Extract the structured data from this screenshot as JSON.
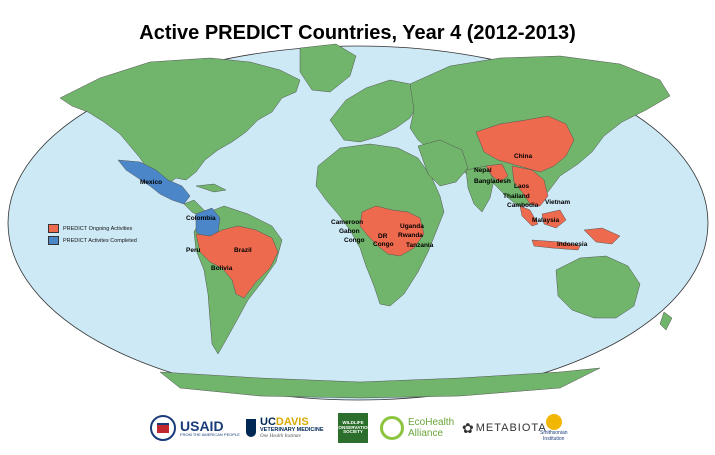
{
  "title": "Active PREDICT Countries, Year 4 (2012-2013)",
  "legend": {
    "items": [
      {
        "label": "PREDICT Ongoing Activities",
        "color": "#ee6a4e"
      },
      {
        "label": "PREDICT Activites Completed",
        "color": "#4a86c8"
      }
    ]
  },
  "colors": {
    "ocean": "#cde9f6",
    "land": "#70b56b",
    "ongoing": "#ee6a4e",
    "completed": "#4a86c8",
    "border": "#555555"
  },
  "countries": {
    "mexico": "Mexico",
    "colombia": "Colombia",
    "peru": "Peru",
    "brazil": "Brazil",
    "bolivia": "Bolivia",
    "cameroon": "Cameroon",
    "gabon": "Gabon",
    "congo": "Congo",
    "dr_congo_1": "DR",
    "dr_congo_2": "Congo",
    "uganda": "Uganda",
    "rwanda": "Rwanda",
    "tanzania": "Tanzania",
    "china": "China",
    "nepal": "Nepal",
    "bangladesh": "Bangladesh",
    "laos": "Laos",
    "thailand": "Thailand",
    "cambodia": "Cambodia",
    "vietnam": "Vietnam",
    "malaysia": "Malaysia",
    "indonesia": "Indonesia"
  },
  "logos": {
    "usaid": "USAID",
    "usaid_sub": "FROM THE AMERICAN PEOPLE",
    "ucdavis_uc": "UC",
    "ucdavis_davis": "DAVIS",
    "ucdavis_sub": "VETERINARY MEDICINE",
    "ucdavis_sub2": "One Health Institute",
    "wcs": "WILDLIFE CONSERVATION SOCIETY",
    "ecohealth_1": "EcoHealth",
    "ecohealth_2": "Alliance",
    "metabiota": "METABIOTA",
    "smithsonian_1": "Smithsonian",
    "smithsonian_2": "Institution"
  }
}
